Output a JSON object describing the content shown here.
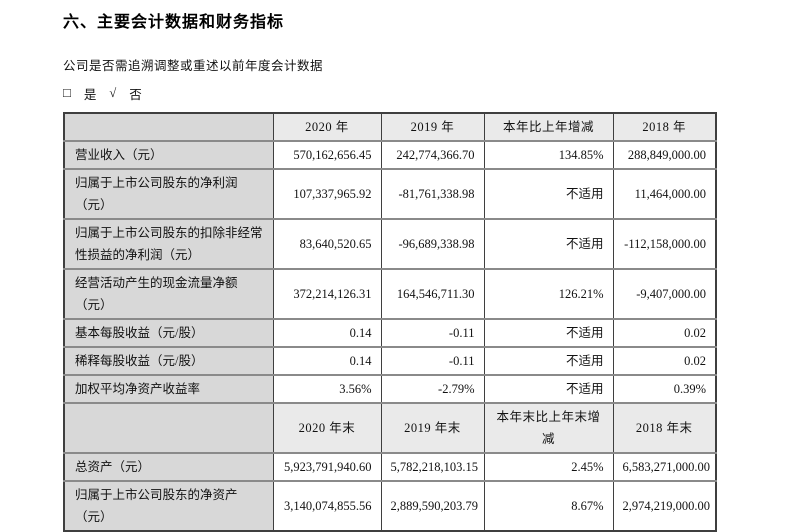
{
  "page": {
    "title": "六、主要会计数据和财务指标",
    "subtitle": "公司是否需追溯调整或重述以前年度会计数据",
    "checkbox": {
      "unchecked_glyph": "□",
      "yes_label": "是",
      "check_glyph": "√",
      "no_label": "否"
    }
  },
  "colors": {
    "label_column_bg": "#d8d8d8",
    "header_cell_bg": "#eaeaea",
    "outer_border": "#3f3f3f",
    "row_border": "#8a8a8a",
    "text": "#121212"
  },
  "table": {
    "sections": [
      {
        "header": [
          "",
          "2020 年",
          "2019 年",
          "本年比上年增减",
          "2018 年"
        ],
        "rows": [
          {
            "label": "营业收入（元）",
            "values": [
              "570,162,656.45",
              "242,774,366.70",
              "134.85%",
              "288,849,000.00"
            ]
          },
          {
            "label": "归属于上市公司股东的净利润（元）",
            "values": [
              "107,337,965.92",
              "-81,761,338.98",
              "不适用",
              "11,464,000.00"
            ]
          },
          {
            "label": "归属于上市公司股东的扣除非经常性损益的净利润（元）",
            "values": [
              "83,640,520.65",
              "-96,689,338.98",
              "不适用",
              "-112,158,000.00"
            ]
          },
          {
            "label": "经营活动产生的现金流量净额（元）",
            "values": [
              "372,214,126.31",
              "164,546,711.30",
              "126.21%",
              "-9,407,000.00"
            ]
          },
          {
            "label": "基本每股收益（元/股）",
            "values": [
              "0.14",
              "-0.11",
              "不适用",
              "0.02"
            ]
          },
          {
            "label": "稀释每股收益（元/股）",
            "values": [
              "0.14",
              "-0.11",
              "不适用",
              "0.02"
            ]
          },
          {
            "label": "加权平均净资产收益率",
            "values": [
              "3.56%",
              "-2.79%",
              "不适用",
              "0.39%"
            ]
          }
        ]
      },
      {
        "header": [
          "",
          "2020 年末",
          "2019 年末",
          "本年末比上年末增减",
          "2018 年末"
        ],
        "rows": [
          {
            "label": "总资产（元）",
            "values": [
              "5,923,791,940.60",
              "5,782,218,103.15",
              "2.45%",
              "6,583,271,000.00"
            ]
          },
          {
            "label": "归属于上市公司股东的净资产（元）",
            "values": [
              "3,140,074,855.56",
              "2,889,590,203.79",
              "8.67%",
              "2,974,219,000.00"
            ]
          }
        ]
      }
    ]
  }
}
